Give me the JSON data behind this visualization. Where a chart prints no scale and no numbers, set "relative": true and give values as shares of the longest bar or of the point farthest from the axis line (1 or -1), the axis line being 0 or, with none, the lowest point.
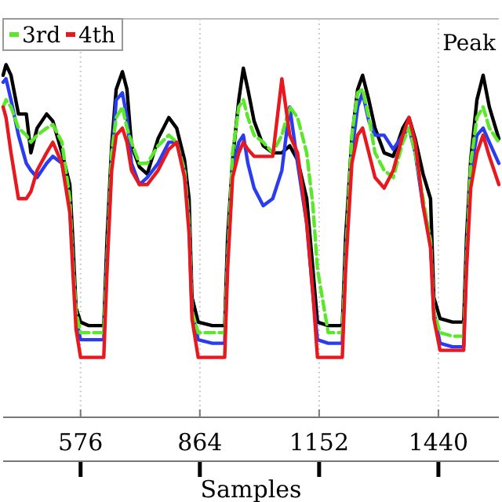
{
  "chart_data": {
    "type": "line",
    "relative": true,
    "xlabel": "Samples",
    "annotations": [
      "Peak"
    ],
    "x": [
      389,
      396,
      408,
      426,
      445,
      456,
      471,
      494,
      509,
      531,
      550,
      557,
      565,
      576,
      595,
      632,
      640,
      651,
      662,
      677,
      688,
      699,
      718,
      737,
      763,
      789,
      808,
      827,
      838,
      845,
      860,
      894,
      924,
      931,
      943,
      958,
      969,
      980,
      995,
      1017,
      1040,
      1062,
      1081,
      1100,
      1122,
      1137,
      1148,
      1174,
      1208,
      1216,
      1231,
      1245,
      1257,
      1272,
      1287,
      1309,
      1331,
      1354,
      1369,
      1384,
      1403,
      1421,
      1429,
      1444,
      1474,
      1501,
      1508,
      1518,
      1533,
      1548,
      1563,
      1586
    ],
    "xlim": [
      389,
      1586
    ],
    "xticks": [
      576,
      864,
      1152,
      1440
    ],
    "grid": "x",
    "legend": "top left",
    "series": [
      {
        "color": "#000000",
        "values": [
          0.97,
          1,
          0.97,
          0.86,
          0.86,
          0.75,
          0.82,
          0.86,
          0.84,
          0.75,
          0.66,
          0.51,
          0.31,
          0.27,
          0.26,
          0.26,
          0.51,
          0.77,
          0.93,
          0.98,
          0.93,
          0.77,
          0.71,
          0.69,
          0.79,
          0.85,
          0.82,
          0.73,
          0.62,
          0.34,
          0.27,
          0.26,
          0.26,
          0.51,
          0.73,
          0.9,
          0.99,
          0.93,
          0.84,
          0.77,
          0.75,
          0.75,
          0.77,
          0.73,
          0.62,
          0.42,
          0.27,
          0.26,
          0.26,
          0.51,
          0.79,
          0.93,
          0.97,
          0.9,
          0.82,
          0.75,
          0.74,
          0.82,
          0.85,
          0.79,
          0.69,
          0.62,
          0.34,
          0.28,
          0.27,
          0.27,
          0.51,
          0.73,
          0.9,
          0.97,
          0.88,
          0.79
        ]
      },
      {
        "color": "#2a3cf0",
        "values": [
          0.95,
          0.96,
          0.9,
          0.8,
          0.72,
          0.7,
          0.68,
          0.72,
          0.74,
          0.72,
          0.6,
          0.45,
          0.28,
          0.22,
          0.22,
          0.22,
          0.45,
          0.72,
          0.9,
          0.92,
          0.85,
          0.72,
          0.66,
          0.68,
          0.72,
          0.78,
          0.78,
          0.7,
          0.55,
          0.3,
          0.22,
          0.21,
          0.21,
          0.45,
          0.7,
          0.78,
          0.8,
          0.72,
          0.65,
          0.6,
          0.62,
          0.7,
          0.88,
          0.72,
          0.55,
          0.35,
          0.22,
          0.21,
          0.21,
          0.45,
          0.75,
          0.88,
          0.92,
          0.84,
          0.8,
          0.8,
          0.76,
          0.8,
          0.82,
          0.75,
          0.6,
          0.5,
          0.3,
          0.21,
          0.2,
          0.2,
          0.45,
          0.7,
          0.8,
          0.82,
          0.78,
          0.72
        ]
      },
      {
        "name": "3rd",
        "color": "#5be82a",
        "line_style": "dashed",
        "values": [
          0.88,
          0.9,
          0.88,
          0.82,
          0.8,
          0.78,
          0.8,
          0.82,
          0.83,
          0.78,
          0.62,
          0.45,
          0.3,
          0.24,
          0.24,
          0.24,
          0.45,
          0.75,
          0.85,
          0.88,
          0.82,
          0.78,
          0.72,
          0.72,
          0.77,
          0.8,
          0.78,
          0.7,
          0.55,
          0.3,
          0.24,
          0.24,
          0.24,
          0.45,
          0.75,
          0.88,
          0.9,
          0.85,
          0.8,
          0.78,
          0.75,
          0.8,
          0.88,
          0.85,
          0.75,
          0.6,
          0.42,
          0.24,
          0.24,
          0.45,
          0.8,
          0.92,
          0.93,
          0.85,
          0.75,
          0.7,
          0.68,
          0.78,
          0.82,
          0.75,
          0.62,
          0.5,
          0.3,
          0.24,
          0.23,
          0.23,
          0.45,
          0.72,
          0.85,
          0.88,
          0.82,
          0.78
        ]
      },
      {
        "name": "4th",
        "color": "#e8191e",
        "values": [
          0.88,
          0.85,
          0.75,
          0.62,
          0.62,
          0.64,
          0.7,
          0.75,
          0.78,
          0.72,
          0.58,
          0.42,
          0.25,
          0.17,
          0.17,
          0.17,
          0.42,
          0.7,
          0.8,
          0.82,
          0.78,
          0.7,
          0.66,
          0.66,
          0.7,
          0.76,
          0.78,
          0.68,
          0.52,
          0.28,
          0.17,
          0.17,
          0.17,
          0.42,
          0.68,
          0.75,
          0.78,
          0.76,
          0.74,
          0.74,
          0.74,
          0.96,
          0.8,
          0.75,
          0.55,
          0.35,
          0.17,
          0.17,
          0.17,
          0.42,
          0.72,
          0.8,
          0.82,
          0.75,
          0.68,
          0.65,
          0.7,
          0.8,
          0.85,
          0.78,
          0.6,
          0.48,
          0.28,
          0.19,
          0.19,
          0.19,
          0.42,
          0.65,
          0.75,
          0.8,
          0.74,
          0.66
        ]
      }
    ]
  }
}
